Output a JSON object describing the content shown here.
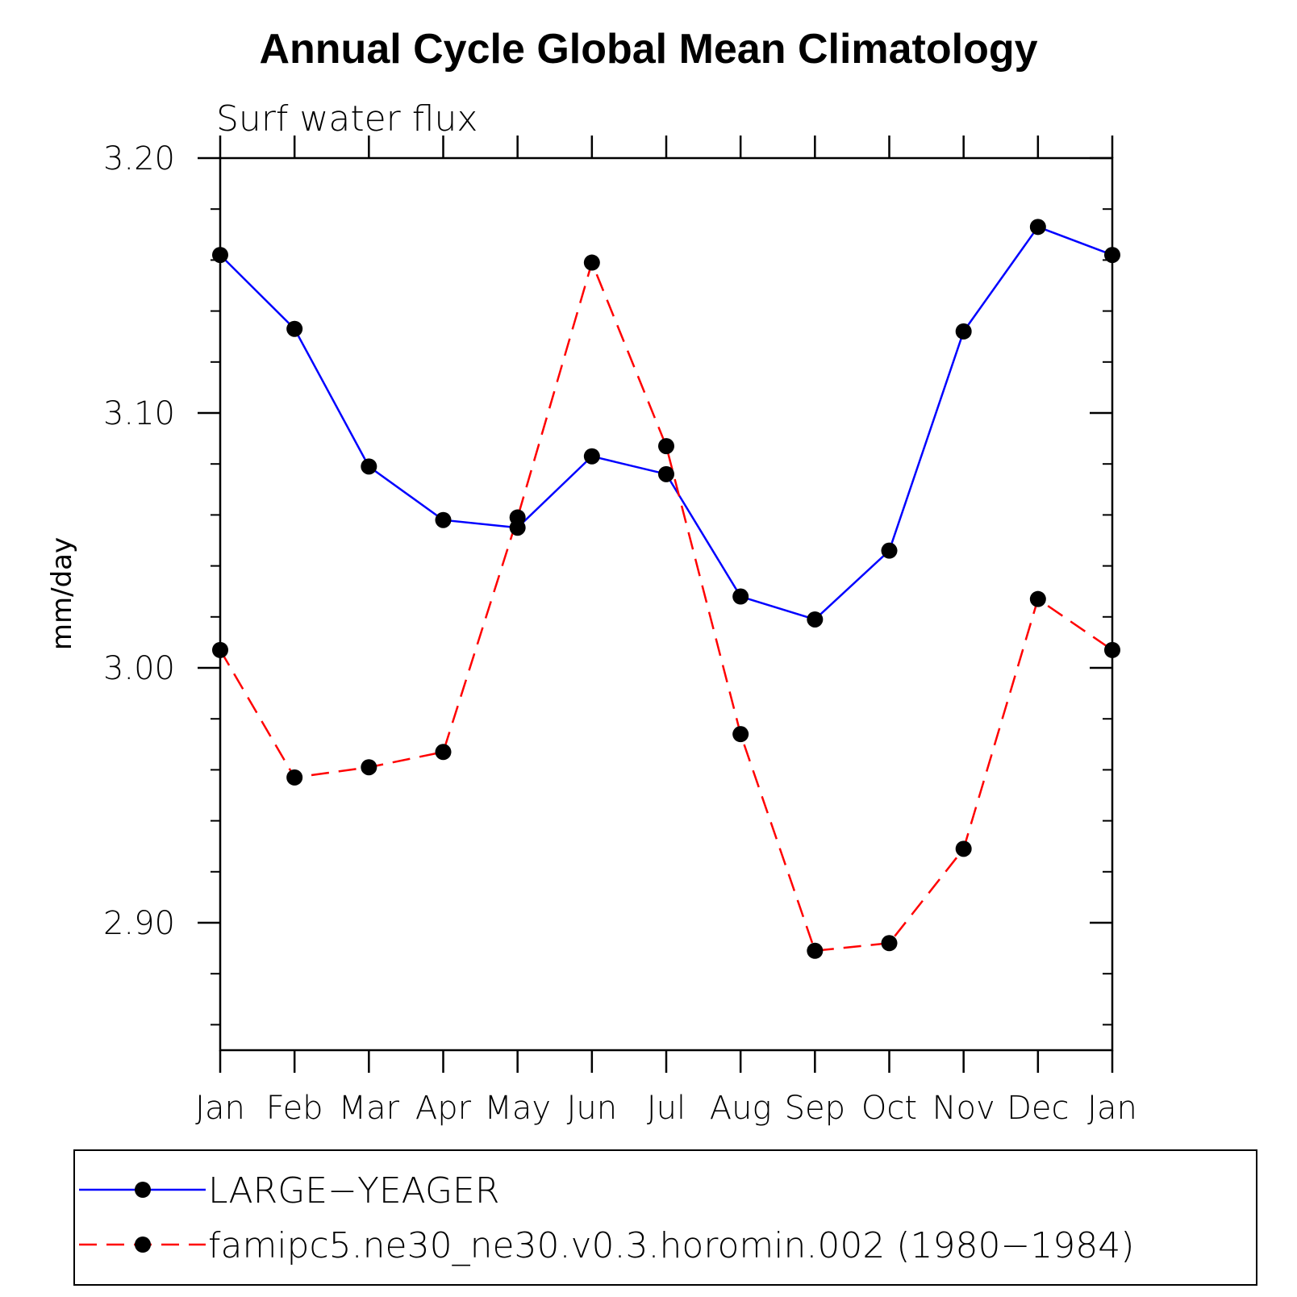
{
  "chart_data": {
    "type": "line",
    "title": "Annual Cycle Global Mean Climatology",
    "subtitle": "Surf water flux",
    "ylabel": "mm/day",
    "xlabel": "",
    "categories": [
      "Jan",
      "Feb",
      "Mar",
      "Apr",
      "May",
      "Jun",
      "Jul",
      "Aug",
      "Sep",
      "Oct",
      "Nov",
      "Dec",
      "Jan"
    ],
    "ylim": [
      2.85,
      3.2
    ],
    "yticks_major": [
      2.9,
      3.0,
      3.1,
      3.2
    ],
    "ytick_labels": [
      "2.90",
      "3.00",
      "3.10",
      "3.20"
    ],
    "yticks_minor_step": 0.02,
    "legend_position": "bottom",
    "series": [
      {
        "name": "LARGE−YEAGER",
        "color": "#0000ff",
        "style": "solid",
        "values": [
          3.162,
          3.133,
          3.079,
          3.058,
          3.055,
          3.083,
          3.076,
          3.028,
          3.019,
          3.046,
          3.132,
          3.173,
          3.162
        ]
      },
      {
        "name": "famipc5.ne30_ne30.v0.3.horomin.002 (1980−1984)",
        "color": "#ff0000",
        "style": "dashed",
        "values": [
          3.007,
          2.957,
          2.961,
          2.967,
          3.059,
          3.159,
          3.087,
          2.974,
          2.889,
          2.892,
          2.929,
          3.027,
          3.007
        ]
      }
    ]
  }
}
